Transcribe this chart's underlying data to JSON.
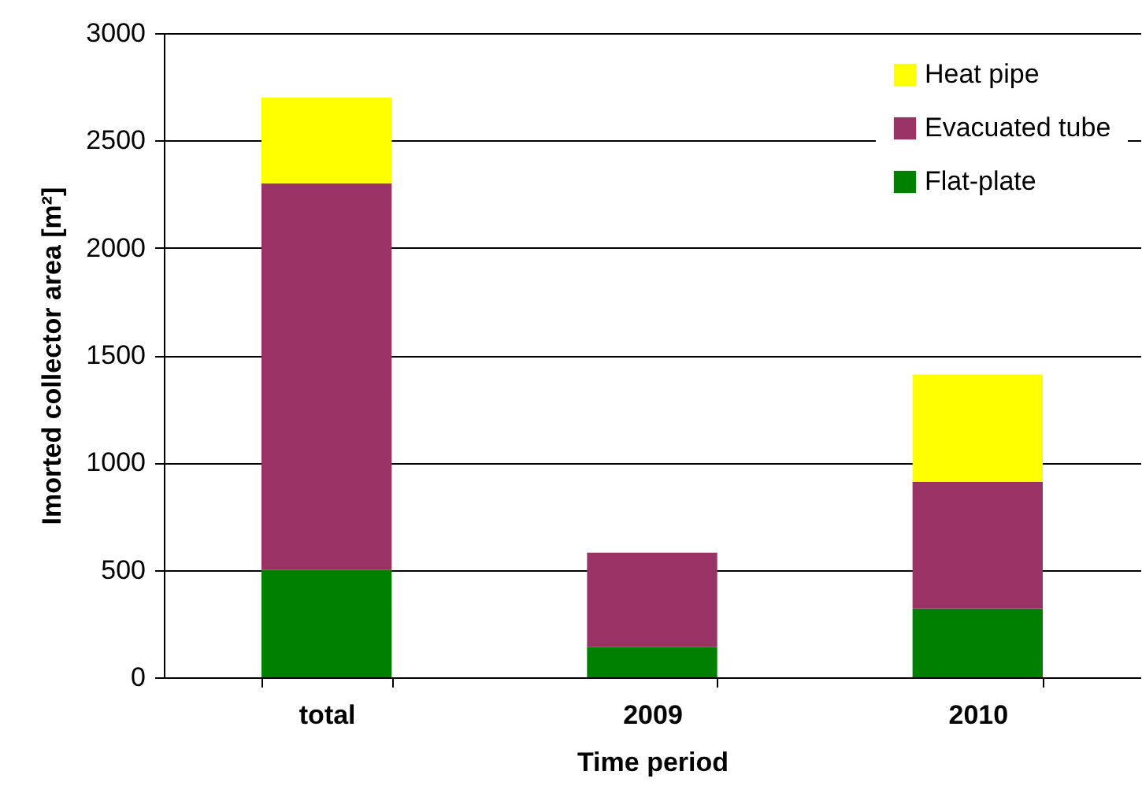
{
  "chart_data": {
    "type": "bar",
    "stacked": true,
    "xlabel": "Time period",
    "ylabel": "Imorted collector area [m²]",
    "categories": [
      "total",
      "2009",
      "2010"
    ],
    "series": [
      {
        "name": "Flat-plate",
        "color": "#008000",
        "values": [
          500,
          140,
          320
        ]
      },
      {
        "name": "Evacuated tube",
        "color": "#993366",
        "values": [
          1800,
          440,
          590
        ]
      },
      {
        "name": "Heat pipe",
        "color": "#ffff00",
        "values": [
          400,
          0,
          500
        ]
      }
    ],
    "ylim": [
      0,
      3000
    ],
    "yticks": [
      0,
      500,
      1000,
      1500,
      2000,
      2500,
      3000
    ],
    "grid": "y",
    "legend": "top right"
  }
}
